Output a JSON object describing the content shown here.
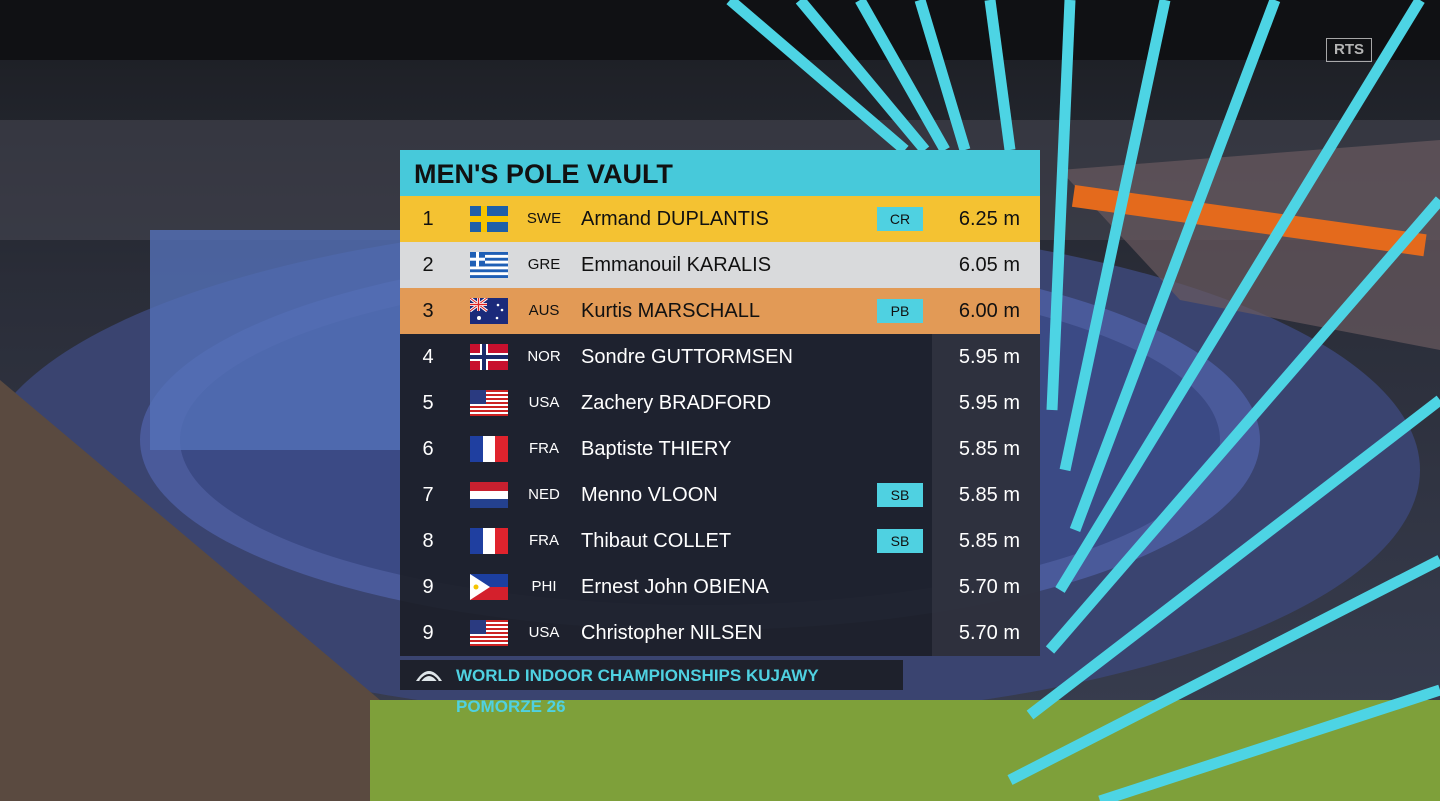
{
  "broadcaster": "RTS",
  "title": "MEN'S POLE VAULT",
  "rows": [
    {
      "rank": "1",
      "country": "SWE",
      "name": "Armand DUPLANTIS",
      "record": "CR",
      "mark": "6.25 m"
    },
    {
      "rank": "2",
      "country": "GRE",
      "name": "Emmanouil KARALIS",
      "mark": "6.05 m"
    },
    {
      "rank": "3",
      "country": "AUS",
      "name": "Kurtis MARSCHALL",
      "record": "PB",
      "mark": "6.00 m"
    },
    {
      "rank": "4",
      "country": "NOR",
      "name": "Sondre GUTTORMSEN",
      "mark": "5.95 m"
    },
    {
      "rank": "5",
      "country": "USA",
      "name": "Zachery BRADFORD",
      "mark": "5.95 m"
    },
    {
      "rank": "6",
      "country": "FRA",
      "name": "Baptiste THIERY",
      "mark": "5.85 m"
    },
    {
      "rank": "7",
      "country": "NED",
      "name": "Menno VLOON",
      "record": "SB",
      "mark": "5.85 m"
    },
    {
      "rank": "8",
      "country": "FRA",
      "name": "Thibaut COLLET",
      "record": "SB",
      "mark": "5.85 m"
    },
    {
      "rank": "9",
      "country": "PHI",
      "name": "Ernest John OBIENA",
      "mark": "5.70 m"
    },
    {
      "rank": "9",
      "country": "USA",
      "name": "Christopher NILSEN",
      "mark": "5.70 m"
    }
  ],
  "footer": "WORLD INDOOR CHAMPIONSHIPS KUJAWY POMORZE 26"
}
